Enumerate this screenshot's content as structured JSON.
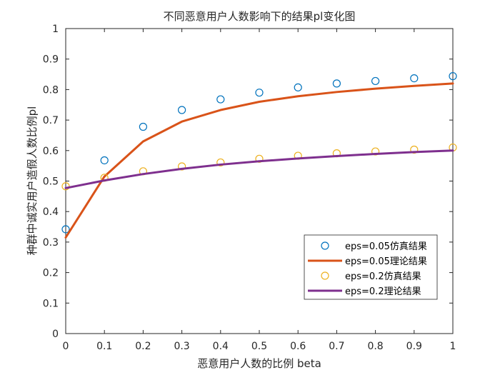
{
  "chart_data": {
    "type": "line",
    "title": "不同恶意用户人数影响下的结果pl变化图",
    "xlabel": "恶意用户人数的比例 beta",
    "ylabel": "种群中诚实用户造假人数比例pl",
    "xlim": [
      0,
      1
    ],
    "ylim": [
      0,
      1
    ],
    "xticks": [
      "0",
      "0.1",
      "0.2",
      "0.3",
      "0.4",
      "0.5",
      "0.6",
      "0.7",
      "0.8",
      "0.9",
      "1"
    ],
    "yticks": [
      "0",
      "0.1",
      "0.2",
      "0.3",
      "0.4",
      "0.5",
      "0.6",
      "0.7",
      "0.8",
      "0.9",
      "1"
    ],
    "x": [
      0,
      0.1,
      0.2,
      0.3,
      0.4,
      0.5,
      0.6,
      0.7,
      0.8,
      0.9,
      1
    ],
    "legend_position": "bottom-right",
    "series": [
      {
        "name": "eps=0.05仿真结果",
        "style": "marker",
        "color": "#0072BD",
        "values": [
          0.342,
          0.568,
          0.678,
          0.733,
          0.768,
          0.79,
          0.807,
          0.82,
          0.828,
          0.837,
          0.844
        ]
      },
      {
        "name": "eps=0.05理论结果",
        "style": "line",
        "color": "#D95319",
        "values": [
          0.315,
          0.515,
          0.63,
          0.695,
          0.733,
          0.76,
          0.778,
          0.792,
          0.803,
          0.812,
          0.82
        ]
      },
      {
        "name": "eps=0.2仿真结果",
        "style": "marker",
        "color": "#EDB120",
        "values": [
          0.483,
          0.511,
          0.532,
          0.548,
          0.561,
          0.573,
          0.583,
          0.591,
          0.597,
          0.603,
          0.61
        ]
      },
      {
        "name": "eps=0.2理论结果",
        "style": "line",
        "color": "#7E2F8E",
        "values": [
          0.477,
          0.502,
          0.523,
          0.54,
          0.554,
          0.565,
          0.574,
          0.582,
          0.589,
          0.595,
          0.6
        ]
      }
    ]
  }
}
